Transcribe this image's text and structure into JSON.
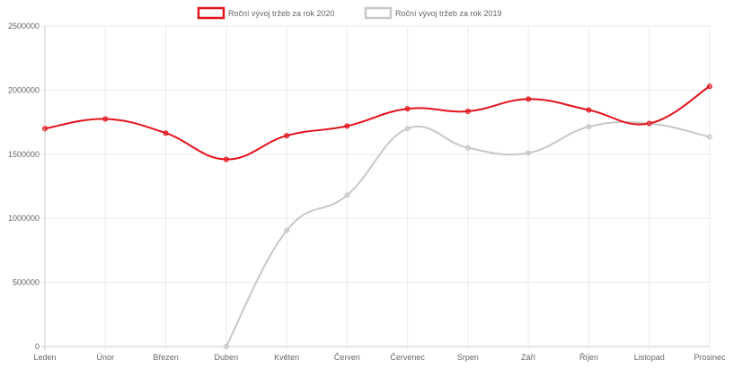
{
  "chart_data": {
    "type": "line",
    "categories": [
      "Leden",
      "Únor",
      "Březen",
      "Duben",
      "Květen",
      "Červen",
      "Červenec",
      "Srpen",
      "Září",
      "Říjen",
      "Listopad",
      "Prosinec"
    ],
    "series": [
      {
        "name": "Roční vývoj tržeb  za rok 2020",
        "color": "#e3121b",
        "values": [
          1700000,
          1775000,
          1665000,
          1460000,
          1645000,
          1720000,
          1855000,
          1835000,
          1930000,
          1845000,
          1740000,
          2030000
        ]
      },
      {
        "name": "Roční vývoj tržeb  za rok 2019",
        "color": "#c8c8c8",
        "values": [
          null,
          null,
          null,
          0,
          905000,
          1180000,
          1700000,
          1550000,
          1510000,
          1715000,
          1740000,
          1635000
        ]
      }
    ],
    "ylim": [
      0,
      2500000
    ],
    "yticks": [
      "0",
      "500000",
      "1000000",
      "1500000",
      "2000000",
      "2500000"
    ],
    "grid": true,
    "legend_position": "top-center"
  }
}
